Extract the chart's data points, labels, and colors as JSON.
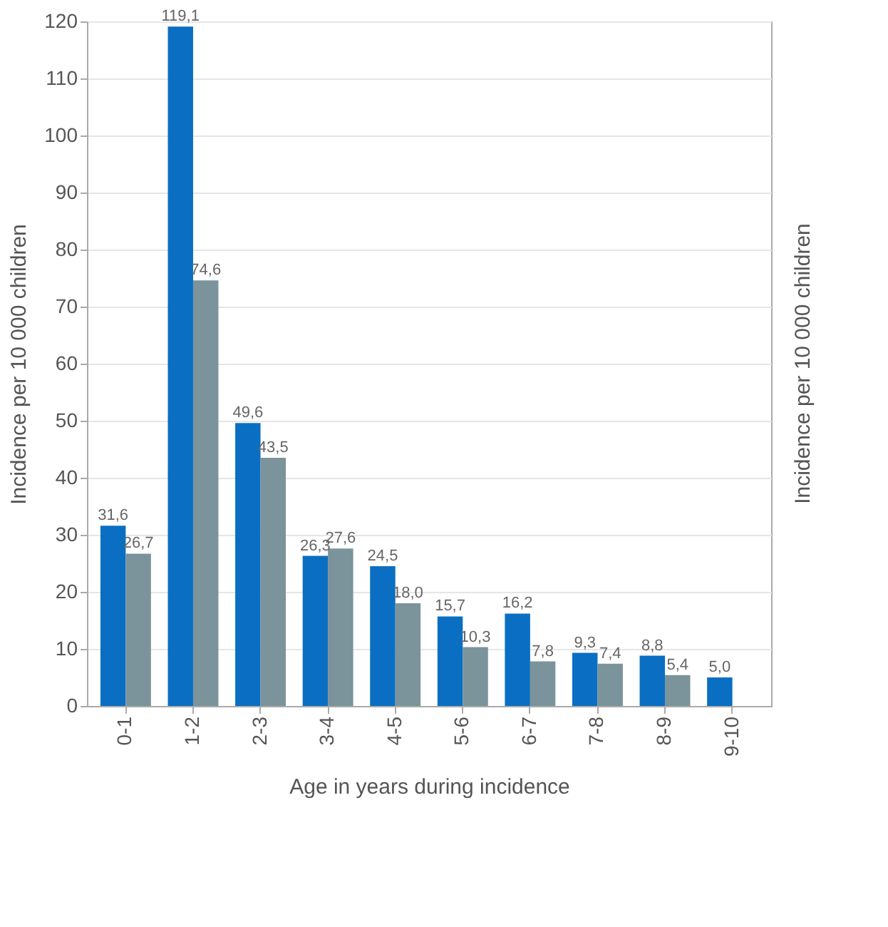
{
  "chart_data": {
    "type": "bar",
    "xlabel": "Age in years during incidence",
    "ylabel": "Incidence per 10 000 children",
    "y2label": "Incidence per 10 000 children",
    "categories": [
      "0-1",
      "1-2",
      "2-3",
      "3-4",
      "4-5",
      "5-6",
      "6-7",
      "7-8",
      "8-9",
      "9-10"
    ],
    "series": [
      {
        "color": "#0a6fc2",
        "values": [
          31.6,
          119.1,
          49.6,
          26.3,
          24.5,
          15.7,
          16.2,
          9.3,
          8.8,
          5.0
        ],
        "value_labels": [
          "31,6",
          "119,1",
          "49,6",
          "26,3",
          "24,5",
          "15,7",
          "16,2",
          "9,3",
          "8,8",
          "5,0"
        ]
      },
      {
        "color": "#7b939b",
        "values": [
          26.7,
          74.6,
          43.5,
          27.6,
          18.0,
          10.3,
          7.8,
          7.4,
          5.4,
          null
        ],
        "value_labels": [
          "26,7",
          "74,6",
          "43,5",
          "27,6",
          "18,0",
          "10,3",
          "7,8",
          "7,4",
          "5,4",
          null
        ]
      }
    ],
    "ylim": [
      0,
      120
    ],
    "yticks": [
      0,
      10,
      20,
      30,
      40,
      50,
      60,
      70,
      80,
      90,
      100,
      110,
      120
    ],
    "grid": "y",
    "legend": false
  }
}
